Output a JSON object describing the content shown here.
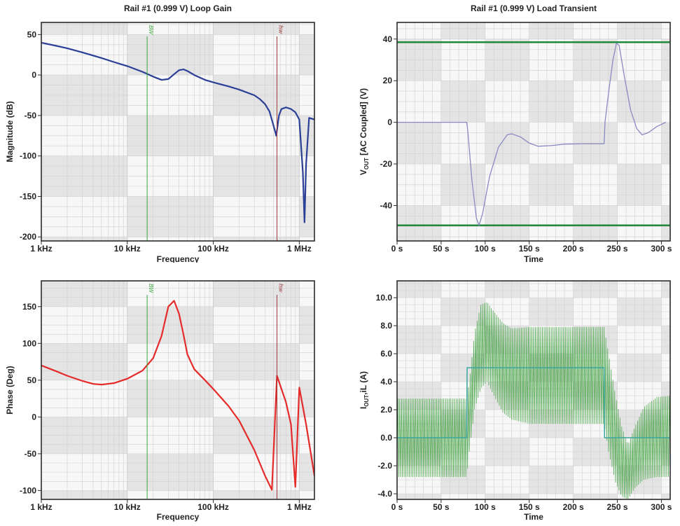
{
  "colors": {
    "frame": "#2b2b2b",
    "band": "#e4e4e4",
    "plot_bg": "#f7f7f7",
    "grid": "#cfcfcf",
    "magnitude": "#2b3f96",
    "phase": "#e52a2a",
    "bw_marker": "#3aa63a",
    "fsw_marker": "#a03a3a",
    "vout": "#8a8ac2",
    "limit": "#1f8a3a",
    "iout": "#3aa6a0",
    "il": "#3a9e3a"
  },
  "chart_data": [
    {
      "id": "magnitude",
      "type": "line",
      "title": "Rail #1 (0.999 V) Loop Gain",
      "xlabel": "Frequency",
      "ylabel": "Magnitude (dB)",
      "xscale": "log",
      "xlim": [
        1000,
        1500000
      ],
      "ylim": [
        -205,
        65
      ],
      "xticks": [
        {
          "v": 1000,
          "label": "1 kHz"
        },
        {
          "v": 10000,
          "label": "10 kHz"
        },
        {
          "v": 100000,
          "label": "100 kHz"
        },
        {
          "v": 1000000,
          "label": "1 MHz"
        }
      ],
      "yticks": [
        {
          "v": 50,
          "label": "50"
        },
        {
          "v": 0,
          "label": "0"
        },
        {
          "v": -50,
          "label": "-50"
        },
        {
          "v": -100,
          "label": "-100"
        },
        {
          "v": -150,
          "label": "-150"
        },
        {
          "v": -200,
          "label": "-200"
        }
      ],
      "grid": true,
      "markers": [
        {
          "x": 17000,
          "label": "BW",
          "color": "#3aa63a"
        },
        {
          "x": 550000,
          "label": "fsw",
          "color": "#a03a3a"
        }
      ],
      "series": [
        {
          "color": "#2b3f96",
          "points": [
            [
              1000,
              40
            ],
            [
              1500,
              36
            ],
            [
              2000,
              33
            ],
            [
              3000,
              28
            ],
            [
              5000,
              21
            ],
            [
              7000,
              16
            ],
            [
              10000,
              11
            ],
            [
              15000,
              4
            ],
            [
              20000,
              -2
            ],
            [
              25000,
              -6
            ],
            [
              30000,
              -5
            ],
            [
              35000,
              1
            ],
            [
              40000,
              6
            ],
            [
              45000,
              7
            ],
            [
              50000,
              5
            ],
            [
              60000,
              0
            ],
            [
              80000,
              -6
            ],
            [
              100000,
              -9
            ],
            [
              150000,
              -14
            ],
            [
              200000,
              -18
            ],
            [
              300000,
              -25
            ],
            [
              350000,
              -30
            ],
            [
              400000,
              -36
            ],
            [
              450000,
              -45
            ],
            [
              500000,
              -62
            ],
            [
              540000,
              -75
            ],
            [
              580000,
              -50
            ],
            [
              620000,
              -42
            ],
            [
              700000,
              -40
            ],
            [
              800000,
              -42
            ],
            [
              900000,
              -46
            ],
            [
              1000000,
              -55
            ],
            [
              1100000,
              -120
            ],
            [
              1150000,
              -182
            ],
            [
              1200000,
              -110
            ],
            [
              1300000,
              -53
            ],
            [
              1500000,
              -55
            ]
          ]
        }
      ]
    },
    {
      "id": "transient_vout",
      "type": "line",
      "title": "Rail #1 (0.999 V) Load Transient",
      "xlabel": "Time",
      "ylabel": "V",
      "ylabel_sub": "OUT",
      "ylabel_rest": " [AC Coupled] (V)",
      "xlim": [
        0,
        310
      ],
      "ylim": [
        -57,
        48
      ],
      "xticks": [
        {
          "v": 0,
          "label": "0 s"
        },
        {
          "v": 50,
          "label": "50 s"
        },
        {
          "v": 100,
          "label": "100 s"
        },
        {
          "v": 150,
          "label": "150 s"
        },
        {
          "v": 200,
          "label": "200 s"
        },
        {
          "v": 250,
          "label": "250 s"
        },
        {
          "v": 300,
          "label": "300 s"
        }
      ],
      "yticks": [
        {
          "v": 40,
          "label": "40"
        },
        {
          "v": 20,
          "label": "20"
        },
        {
          "v": 0,
          "label": "0"
        },
        {
          "v": -20,
          "label": "-20"
        },
        {
          "v": -40,
          "label": "-40"
        }
      ],
      "grid": true,
      "hlines": [
        {
          "y": 38.5,
          "color": "#1f8a3a"
        },
        {
          "y": -49.5,
          "color": "#1f8a3a"
        }
      ],
      "series": [
        {
          "color": "#8a8ac2",
          "points": [
            [
              0,
              0
            ],
            [
              79,
              0
            ],
            [
              80,
              -3
            ],
            [
              85,
              -28
            ],
            [
              90,
              -46
            ],
            [
              93,
              -49.5
            ],
            [
              97,
              -44
            ],
            [
              105,
              -26
            ],
            [
              115,
              -12
            ],
            [
              125,
              -6
            ],
            [
              130,
              -5.5
            ],
            [
              140,
              -7
            ],
            [
              150,
              -10
            ],
            [
              160,
              -11.5
            ],
            [
              175,
              -11.2
            ],
            [
              190,
              -10.5
            ],
            [
              210,
              -10.3
            ],
            [
              235,
              -10.3
            ],
            [
              236,
              0
            ],
            [
              240,
              14
            ],
            [
              245,
              30
            ],
            [
              249,
              38
            ],
            [
              252,
              37
            ],
            [
              258,
              22
            ],
            [
              265,
              6
            ],
            [
              272,
              -3
            ],
            [
              278,
              -6
            ],
            [
              285,
              -5
            ],
            [
              295,
              -2
            ],
            [
              305,
              0
            ]
          ]
        }
      ]
    },
    {
      "id": "phase",
      "type": "line",
      "xlabel": "Frequency",
      "ylabel": "Phase (Deg)",
      "xscale": "log",
      "xlim": [
        1000,
        1500000
      ],
      "ylim": [
        -112,
        185
      ],
      "xticks": [
        {
          "v": 1000,
          "label": "1 kHz"
        },
        {
          "v": 10000,
          "label": "10 kHz"
        },
        {
          "v": 100000,
          "label": "100 kHz"
        },
        {
          "v": 1000000,
          "label": "1 MHz"
        }
      ],
      "yticks": [
        {
          "v": 150,
          "label": "150"
        },
        {
          "v": 100,
          "label": "100"
        },
        {
          "v": 50,
          "label": "50"
        },
        {
          "v": 0,
          "label": "0"
        },
        {
          "v": -50,
          "label": "-50"
        },
        {
          "v": -100,
          "label": "-100"
        }
      ],
      "grid": true,
      "markers": [
        {
          "x": 17000,
          "label": "BW",
          "color": "#3aa63a"
        },
        {
          "x": 550000,
          "label": "fsw",
          "color": "#a03a3a"
        }
      ],
      "series": [
        {
          "color": "#e52a2a",
          "points": [
            [
              1000,
              70
            ],
            [
              1500,
              62
            ],
            [
              2000,
              56
            ],
            [
              3000,
              49
            ],
            [
              4000,
              45
            ],
            [
              5000,
              44
            ],
            [
              7000,
              46
            ],
            [
              10000,
              52
            ],
            [
              15000,
              63
            ],
            [
              20000,
              80
            ],
            [
              25000,
              110
            ],
            [
              30000,
              150
            ],
            [
              35000,
              158
            ],
            [
              40000,
              140
            ],
            [
              45000,
              112
            ],
            [
              50000,
              85
            ],
            [
              60000,
              65
            ],
            [
              80000,
              50
            ],
            [
              100000,
              38
            ],
            [
              150000,
              15
            ],
            [
              200000,
              -5
            ],
            [
              300000,
              -45
            ],
            [
              400000,
              -80
            ],
            [
              480000,
              -99
            ],
            [
              550000,
              56
            ],
            [
              700000,
              20
            ],
            [
              800000,
              -10
            ],
            [
              900000,
              -95
            ],
            [
              1000000,
              40
            ],
            [
              1200000,
              -10
            ],
            [
              1500000,
              -80
            ]
          ]
        }
      ]
    },
    {
      "id": "transient_iout",
      "type": "line",
      "xlabel": "Time",
      "ylabel": "I",
      "ylabel_sub": "OUT",
      "ylabel_rest": ",iL (A)",
      "xlim": [
        0,
        310
      ],
      "ylim": [
        -4.4,
        11.2
      ],
      "xticks": [
        {
          "v": 0,
          "label": "0 s"
        },
        {
          "v": 50,
          "label": "50 s"
        },
        {
          "v": 100,
          "label": "100 s"
        },
        {
          "v": 150,
          "label": "150 s"
        },
        {
          "v": 200,
          "label": "200 s"
        },
        {
          "v": 250,
          "label": "250 s"
        },
        {
          "v": 300,
          "label": "300 s"
        }
      ],
      "yticks": [
        {
          "v": 10,
          "label": "10.0"
        },
        {
          "v": 8,
          "label": "8.0"
        },
        {
          "v": 6,
          "label": "6.0"
        },
        {
          "v": 4,
          "label": "4.0"
        },
        {
          "v": 2,
          "label": "2.0"
        },
        {
          "v": 0,
          "label": "0.0"
        },
        {
          "v": -2,
          "label": "-2.0"
        },
        {
          "v": -4,
          "label": "-4.0"
        }
      ],
      "grid": true,
      "series": [
        {
          "color": "#3aa6a0",
          "points": [
            [
              0,
              0
            ],
            [
              79,
              0
            ],
            [
              79.5,
              5
            ],
            [
              235,
              5
            ],
            [
              235.5,
              0
            ],
            [
              310,
              0
            ]
          ]
        }
      ],
      "ripple": {
        "color": "#3a9e3a",
        "period": 2,
        "envelope": [
          [
            0,
            2.8,
            -2.8
          ],
          [
            79,
            2.8,
            -2.8
          ],
          [
            82,
            4.0,
            -1.0
          ],
          [
            88,
            7.5,
            2.0
          ],
          [
            95,
            9.5,
            3.5
          ],
          [
            102,
            9.7,
            4.0
          ],
          [
            110,
            9.0,
            3.0
          ],
          [
            120,
            8.2,
            1.8
          ],
          [
            130,
            7.8,
            1.3
          ],
          [
            150,
            7.9,
            1.0
          ],
          [
            235,
            7.9,
            1.0
          ],
          [
            240,
            6.0,
            -1.0
          ],
          [
            248,
            3.0,
            -3.2
          ],
          [
            255,
            0.8,
            -4.2
          ],
          [
            262,
            -0.5,
            -4.4
          ],
          [
            270,
            0.8,
            -3.6
          ],
          [
            280,
            2.2,
            -3.0
          ],
          [
            295,
            2.9,
            -2.8
          ],
          [
            310,
            3.0,
            -2.8
          ]
        ]
      }
    }
  ]
}
